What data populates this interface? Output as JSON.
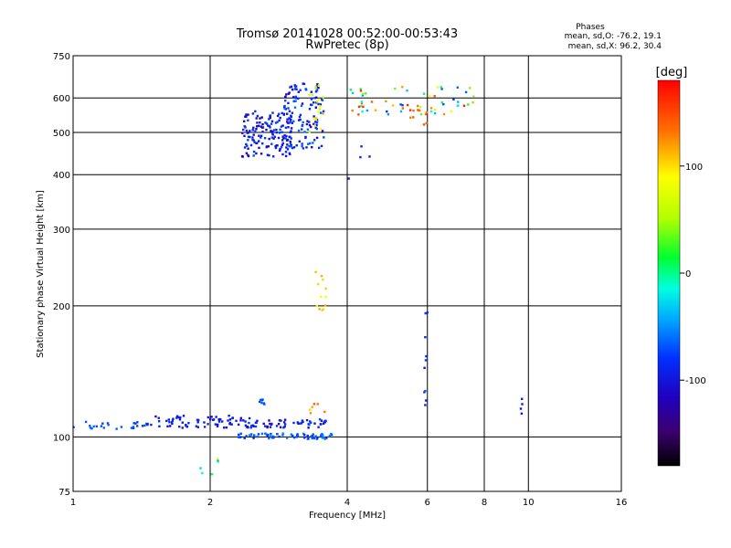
{
  "chart_data": {
    "type": "scatter",
    "title": "Tromsø 20141028 00:52:00-00:53:43",
    "subtitle": "RwPretec (8p)",
    "stats": {
      "heading": "Phases",
      "line_o": "mean, sd,O: -76.2, 19.1",
      "line_x": "mean, sd,X:  96.2, 30.4"
    },
    "xlabel": "Frequency [MHz]",
    "ylabel": "Stationary phase Virtual Height [km]",
    "x_scale": "log",
    "y_scale": "log",
    "xlim": [
      1,
      16
    ],
    "ylim": [
      75,
      750
    ],
    "x_ticks": [
      1,
      2,
      4,
      6,
      8,
      10,
      16
    ],
    "x_tick_labels": [
      "1",
      "2",
      "4",
      "6",
      "8",
      "10",
      "16"
    ],
    "y_ticks": [
      75,
      100,
      200,
      300,
      400,
      500,
      600,
      750
    ],
    "y_tick_labels": [
      "75",
      "100",
      "200",
      "300",
      "400",
      "500",
      "600",
      "750"
    ],
    "grid": true,
    "colorbar": {
      "label": "[deg]",
      "range": [
        -180,
        180
      ],
      "ticks": [
        100,
        0,
        -100
      ],
      "tick_labels": [
        "100",
        "0",
        "-100"
      ]
    },
    "clusters": [
      {
        "f": [
          1.0,
          1.45
        ],
        "h": [
          104,
          109
        ],
        "ph": [
          -80,
          -60
        ],
        "n": 24
      },
      {
        "f": [
          1.45,
          2.45
        ],
        "h": [
          105,
          112
        ],
        "ph": [
          -110,
          -80
        ],
        "n": 70
      },
      {
        "f": [
          2.4,
          3.6
        ],
        "h": [
          105,
          110
        ],
        "ph": [
          -120,
          -70
        ],
        "n": 55
      },
      {
        "f": [
          2.3,
          3.7
        ],
        "h": [
          99,
          102
        ],
        "ph": [
          -90,
          -50
        ],
        "n": 65
      },
      {
        "f": [
          2.35,
          3.05
        ],
        "h": [
          440,
          560
        ],
        "ph": [
          -115,
          -70
        ],
        "n": 150
      },
      {
        "f": [
          2.9,
          3.55
        ],
        "h": [
          460,
          650
        ],
        "ph": [
          -115,
          -60
        ],
        "n": 120
      },
      {
        "f": [
          3.3,
          3.6
        ],
        "h": [
          500,
          650
        ],
        "ph": [
          40,
          120
        ],
        "n": 18
      },
      {
        "f": [
          3.95,
          7.6
        ],
        "h": [
          550,
          640
        ],
        "ph": [
          -80,
          170
        ],
        "n": 55
      },
      {
        "f": [
          5.2,
          6.0
        ],
        "h": [
          520,
          580
        ],
        "ph": [
          120,
          175
        ],
        "n": 14
      },
      {
        "f": [
          3.4,
          3.6
        ],
        "h": [
          195,
          240
        ],
        "ph": [
          80,
          120
        ],
        "n": 12
      },
      {
        "f": [
          3.3,
          3.6
        ],
        "h": [
          112,
          122
        ],
        "ph": [
          100,
          150
        ],
        "n": 6
      },
      {
        "f": [
          5.9,
          6.0
        ],
        "h": [
          105,
          200
        ],
        "ph": [
          -100,
          -60
        ],
        "n": 10
      },
      {
        "f": [
          2.5,
          2.65
        ],
        "h": [
          119,
          122
        ],
        "ph": [
          -80,
          -60
        ],
        "n": 8
      },
      {
        "f": [
          4.0,
          4.6
        ],
        "h": [
          380,
          500
        ],
        "ph": [
          -110,
          -80
        ],
        "n": 4
      },
      {
        "f": [
          9.6,
          9.7
        ],
        "h": [
          110,
          130
        ],
        "ph": [
          -110,
          -90
        ],
        "n": 4
      },
      {
        "f": [
          1.9,
          2.1
        ],
        "h": [
          80,
          90
        ],
        "ph": [
          -100,
          120
        ],
        "n": 6
      }
    ]
  }
}
